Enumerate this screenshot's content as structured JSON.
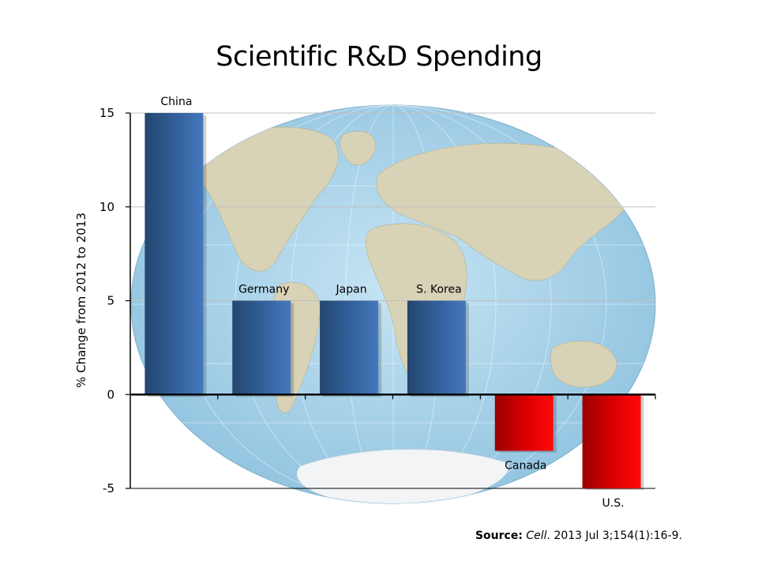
{
  "slide": {
    "title": "Scientific R&D Spending"
  },
  "source": {
    "label": "Source:",
    "journal": "Cell",
    "citation": ". 2013 Jul 3;154(1):16-9."
  },
  "colors": {
    "positive_bar": "#3a6aab",
    "negative_bar": "#e60000",
    "map_ocean": "#a9d3ea",
    "grid": "#bfbfbf"
  },
  "chart_data": {
    "type": "bar",
    "title": "Scientific R&D Spending",
    "ylabel": "% Change from 2012 to 2013",
    "xlabel": "",
    "categories": [
      "China",
      "Germany",
      "Japan",
      "S. Korea",
      "Canada",
      "U.S."
    ],
    "values": [
      15,
      5,
      5,
      5,
      -3,
      -5
    ],
    "ylim": [
      -5,
      15
    ],
    "yticks": [
      15,
      10,
      5,
      0,
      -5
    ],
    "ytick_labels": [
      "15",
      "10",
      "5",
      "0",
      "-5"
    ],
    "grid": true,
    "background": "world map"
  }
}
